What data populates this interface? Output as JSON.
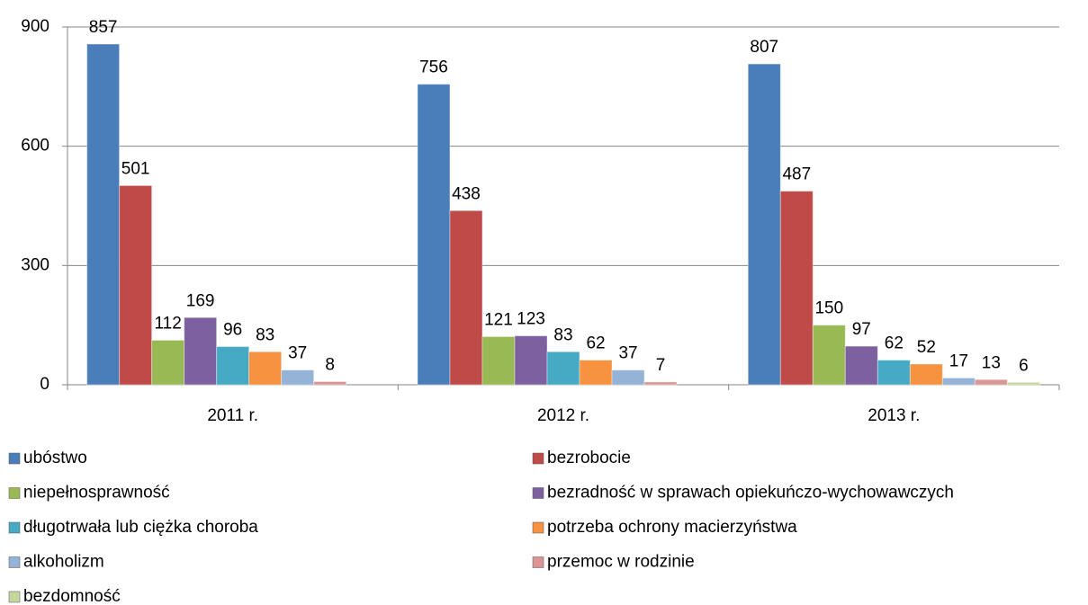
{
  "chart_data": {
    "type": "bar",
    "categories": [
      "2011 r.",
      "2012 r.",
      "2013 r."
    ],
    "series": [
      {
        "name": "ubóstwo",
        "color": "#4a7ebb",
        "values": [
          857,
          756,
          807
        ]
      },
      {
        "name": "bezrobocie",
        "color": "#be4b48",
        "values": [
          501,
          438,
          487
        ]
      },
      {
        "name": "niepełnosprawność",
        "color": "#98b954",
        "values": [
          112,
          121,
          150
        ]
      },
      {
        "name": "bezradność w sprawach opiekuńczo-wychowawczych",
        "color": "#7d60a0",
        "values": [
          169,
          123,
          97
        ]
      },
      {
        "name": "długotrwała lub ciężka choroba",
        "color": "#46aac5",
        "values": [
          96,
          83,
          62
        ]
      },
      {
        "name": "potrzeba ochrony macierzyństwa",
        "color": "#f69240",
        "values": [
          83,
          62,
          52
        ]
      },
      {
        "name": "alkoholizm",
        "color": "#95b3d7",
        "values": [
          37,
          37,
          17
        ]
      },
      {
        "name": "przemoc w rodzinie",
        "color": "#d99694",
        "values": [
          8,
          7,
          13
        ]
      },
      {
        "name": "bezdomność",
        "color": "#c3d69b",
        "values": [
          null,
          null,
          6
        ]
      }
    ],
    "ylim": [
      0,
      900
    ],
    "yticks": [
      0,
      300,
      600,
      900
    ],
    "grid": true
  }
}
